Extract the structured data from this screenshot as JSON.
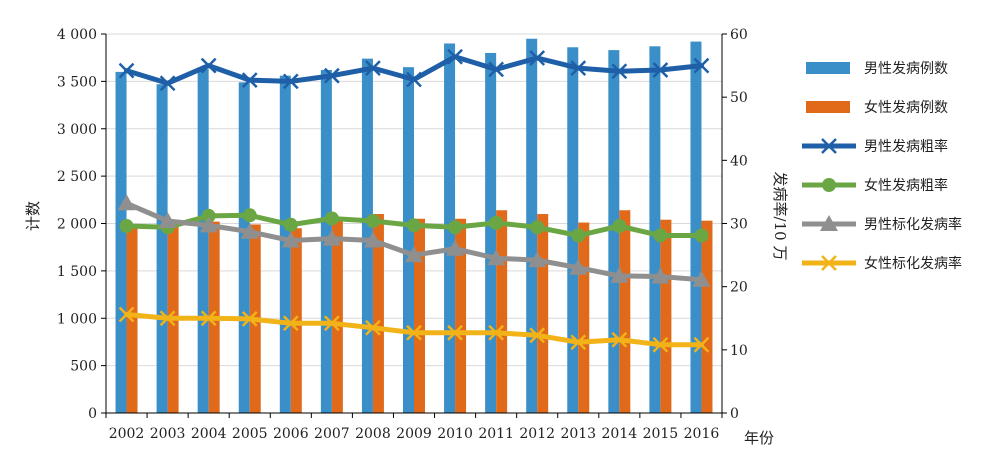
{
  "chart_data": {
    "type": "bar",
    "x_label": "年份",
    "y_left_label": "计数",
    "y_right_label": "发病率/10 万",
    "y_left_lim": [
      0,
      4000
    ],
    "y_right_lim": [
      0,
      60
    ],
    "y_left_ticks": [
      "0",
      "500",
      "1 000",
      "1 500",
      "2 000",
      "2 500",
      "3 000",
      "3 500",
      "4 000"
    ],
    "y_left_tick_values": [
      0,
      500,
      1000,
      1500,
      2000,
      2500,
      3000,
      3500,
      4000
    ],
    "y_right_ticks": [
      "0",
      "10",
      "20",
      "30",
      "40",
      "50",
      "60"
    ],
    "y_right_tick_values": [
      0,
      10,
      20,
      30,
      40,
      50,
      60
    ],
    "legend_position": "right",
    "categories": [
      "2002",
      "2003",
      "2004",
      "2005",
      "2006",
      "2007",
      "2008",
      "2009",
      "2010",
      "2011",
      "2012",
      "2013",
      "2014",
      "2015",
      "2016"
    ],
    "bar_series": [
      {
        "name": "男性发病例数",
        "color": "#3a8fc8",
        "axis": "left",
        "values": [
          3600,
          3470,
          3630,
          3490,
          3560,
          3620,
          3740,
          3650,
          3900,
          3800,
          3950,
          3860,
          3830,
          3870,
          3920
        ]
      },
      {
        "name": "女性发病例数",
        "color": "#e06a1a",
        "axis": "left",
        "values": [
          1960,
          1970,
          2020,
          1990,
          1950,
          2040,
          2100,
          2050,
          2050,
          2140,
          2100,
          2010,
          2140,
          2040,
          2030
        ]
      }
    ],
    "line_series": [
      {
        "name": "男性发病粗率",
        "color": "#1f5fa8",
        "marker": "x",
        "axis": "right",
        "values": [
          54.2,
          52.2,
          55.0,
          52.7,
          52.5,
          53.4,
          54.6,
          52.8,
          56.4,
          54.4,
          56.2,
          54.6,
          54.1,
          54.3,
          55.0
        ]
      },
      {
        "name": "女性发病粗率",
        "color": "#6ba644",
        "marker": "circle",
        "axis": "right",
        "values": [
          29.6,
          29.4,
          31.2,
          31.3,
          29.8,
          30.8,
          30.4,
          29.7,
          29.4,
          30.1,
          29.4,
          28.1,
          29.6,
          28.1,
          28.1
        ]
      },
      {
        "name": "男性标化发病率",
        "color": "#8f8f8f",
        "marker": "triangle",
        "axis": "right",
        "values": [
          33.2,
          30.4,
          29.7,
          28.7,
          27.3,
          27.6,
          27.3,
          25.0,
          26.0,
          24.5,
          24.2,
          23.0,
          21.7,
          21.6,
          21.1
        ]
      },
      {
        "name": "女性标化发病率",
        "color": "#f2b318",
        "marker": "x",
        "axis": "right",
        "values": [
          15.6,
          15.0,
          15.0,
          14.9,
          14.2,
          14.2,
          13.5,
          12.7,
          12.7,
          12.7,
          12.3,
          11.2,
          11.6,
          10.8,
          10.8
        ]
      }
    ]
  }
}
